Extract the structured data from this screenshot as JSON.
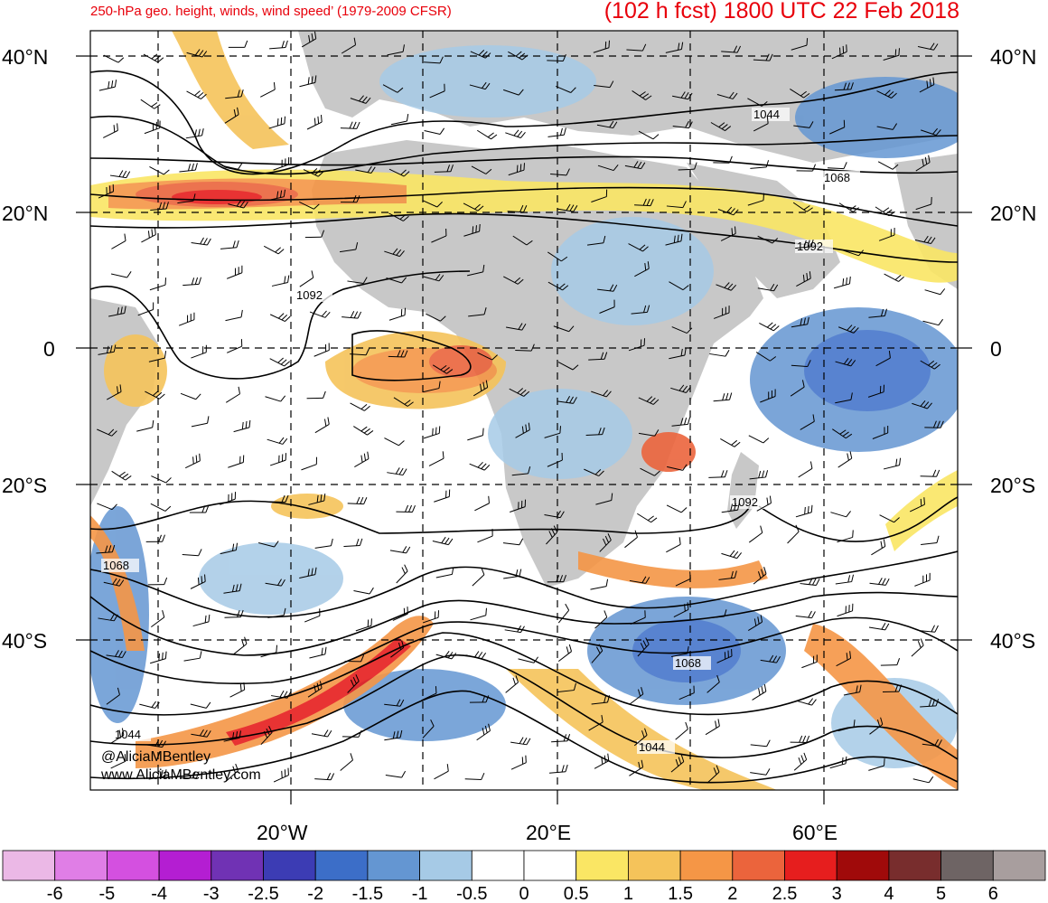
{
  "header": {
    "title_left": "250-hPa geo. height, winds, wind speed’ (1979-2009 CFSR)",
    "title_right": "(102 h fcst) 1800 UTC 22 Feb 2018"
  },
  "map": {
    "lat_labels_left": [
      "40°N",
      "20°N",
      "0",
      "20°S",
      "40°S"
    ],
    "lat_labels_right": [
      "40°N",
      "20°N",
      "0",
      "20°S",
      "40°S"
    ],
    "lon_labels": [
      "20°W",
      "20°E",
      "60°E"
    ],
    "contour_labels": [
      "1044",
      "1068",
      "1092",
      "1092",
      "1092",
      "1068",
      "1068",
      "1044",
      "1044"
    ],
    "land_color": "#c8c8c8",
    "ocean_color": "#ffffff",
    "credit_line1": "@AliciaMBentley",
    "credit_line2": "www.AliciaMBentley.com"
  },
  "colorbar": {
    "colors": [
      "#ebb8e6",
      "#e07ee6",
      "#d450e0",
      "#b41ed2",
      "#7032b4",
      "#3c3cb4",
      "#3c6ec8",
      "#6496d2",
      "#a6cae6",
      "#ffffff",
      "#ffffff",
      "#fae664",
      "#f5c35a",
      "#f59646",
      "#eb643c",
      "#e61e1e",
      "#a00a0a",
      "#782d2d",
      "#6e6464",
      "#a89e9e"
    ],
    "labels": [
      "-6",
      "-5",
      "-4",
      "-3",
      "-2.5",
      "-2",
      "-1.5",
      "-1",
      "-0.5",
      "0",
      "0.5",
      "1",
      "1.5",
      "2",
      "2.5",
      "3",
      "4",
      "5",
      "6"
    ]
  }
}
